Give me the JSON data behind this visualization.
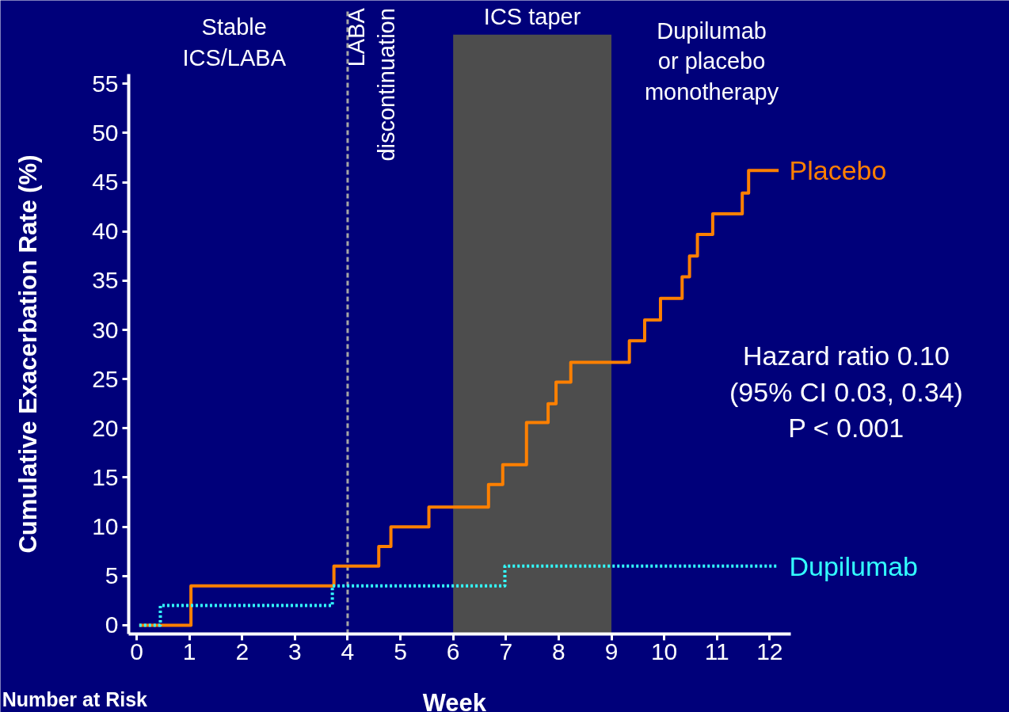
{
  "chart_data": {
    "type": "step",
    "xlabel": "Week",
    "ylabel": "Cumulative Exacerbation Rate (%)",
    "xlim": [
      -0.15,
      12.4
    ],
    "ylim": [
      -0.9,
      56
    ],
    "xticks": [
      0,
      1,
      2,
      3,
      4,
      5,
      6,
      7,
      8,
      9,
      10,
      11,
      12
    ],
    "yticks": [
      0,
      5,
      10,
      15,
      20,
      25,
      30,
      35,
      40,
      45,
      50,
      55
    ],
    "grid": false,
    "marker": "none",
    "series": [
      {
        "name": "Placebo",
        "color": "#ff8000",
        "line_style": "solid",
        "x": [
          0.05,
          1.03,
          3.74,
          4.59,
          4.82,
          5.54,
          6.67,
          6.94,
          7.39,
          7.8,
          7.95,
          8.23,
          9.34,
          9.63,
          9.93,
          10.34,
          10.48,
          10.63,
          10.92,
          11.48,
          11.6,
          12.17
        ],
        "values": [
          0,
          4,
          6,
          8,
          10,
          12,
          14.3,
          16.3,
          20.6,
          22.5,
          24.7,
          26.7,
          28.9,
          31,
          33.2,
          35.4,
          37.5,
          39.7,
          41.8,
          43.9,
          46.2,
          46.2
        ]
      },
      {
        "name": "Dupilumab",
        "color": "#33ffff",
        "line_style": "dotted",
        "x": [
          0.05,
          0.45,
          3.71,
          6.98,
          12.17
        ],
        "values": [
          0,
          2,
          4,
          6,
          6
        ]
      }
    ],
    "ref_lines": [
      {
        "axis": "x",
        "value": 4,
        "label": "LABA discontinuation",
        "color": "#a6a6a6",
        "line_style": "dashed"
      }
    ],
    "bands": [
      {
        "axis": "x",
        "from": 6,
        "to": 9,
        "label": "ICS taper",
        "color": "#4d4d4d"
      }
    ],
    "annotations": [
      "Stable\nICS/LABA",
      "Dupilumab\nor placebo\nmonotherapy",
      "Hazard ratio 0.10\n(95% CI 0.03, 0.34)\nP < 0.001",
      "Number at Risk"
    ]
  }
}
